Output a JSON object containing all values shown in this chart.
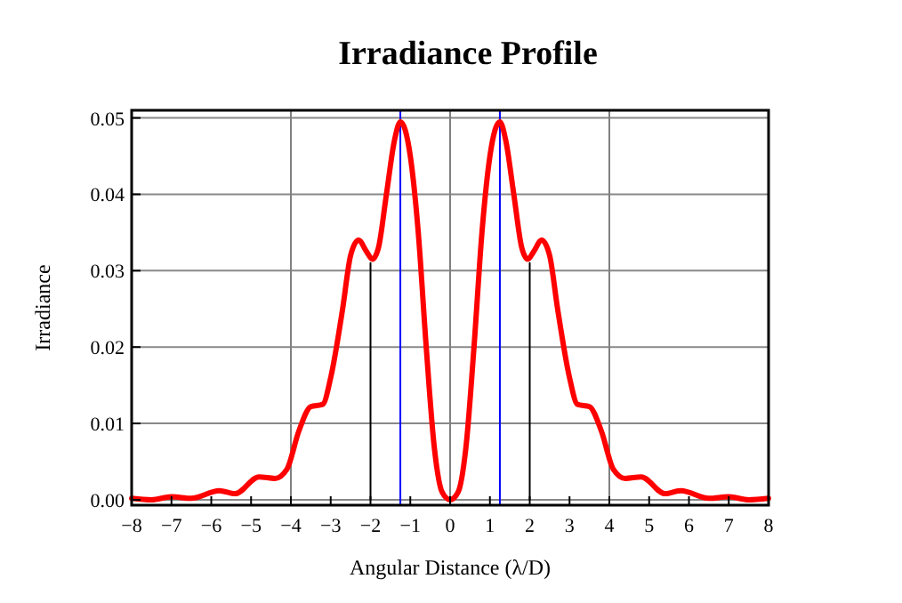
{
  "chart_data": {
    "type": "line",
    "title": "Irradiance Profile",
    "xlabel": "Angular Distance (λ/D)",
    "ylabel": "Irradiance",
    "xlim": [
      -8,
      8
    ],
    "xticks": [
      -8,
      -7,
      -6,
      -5,
      -4,
      -3,
      -2,
      -1,
      0,
      1,
      2,
      3,
      4,
      5,
      6,
      7,
      8
    ],
    "ylim": [
      -0.0007,
      0.051
    ],
    "yticks": [
      {
        "value": 0,
        "label": "0.00"
      },
      {
        "value": 0.01,
        "label": "0.01"
      },
      {
        "value": 0.02,
        "label": "0.02"
      },
      {
        "value": 0.03,
        "label": "0.03"
      },
      {
        "value": 0.04,
        "label": "0.04"
      },
      {
        "value": 0.05,
        "label": "0.05"
      }
    ],
    "grid": "y",
    "line_style": "solid",
    "ref_lines": [
      {
        "axis": "x",
        "value": -4,
        "color": "#808080"
      },
      {
        "axis": "x",
        "value": 0,
        "color": "#808080"
      },
      {
        "axis": "x",
        "value": 4,
        "color": "#808080"
      },
      {
        "axis": "x",
        "value": -1.25,
        "color": "#0000ff"
      },
      {
        "axis": "x",
        "value": 1.25,
        "color": "#0000ff"
      }
    ],
    "series": [
      {
        "color": "#ff0000",
        "x": [
          -8,
          -7.5,
          -7,
          -6.5,
          -5.8,
          -5.4,
          -4.8,
          -4.4,
          -4.1,
          -3.8,
          -3.5,
          -3.2,
          -3,
          -2.7,
          -2.5,
          -2.3,
          -2.1,
          -1.95,
          -1.8,
          -1.6,
          -1.4,
          -1.25,
          -1,
          -0.8,
          -0.6,
          -0.4,
          -0.2,
          0,
          0.2,
          0.4,
          0.6,
          0.8,
          1,
          1.25,
          1.4,
          1.6,
          1.8,
          1.95,
          2.1,
          2.3,
          2.5,
          2.7,
          3,
          3.2,
          3.5,
          3.8,
          4.1,
          4.4,
          4.8,
          5.4,
          5.8,
          6.5,
          7,
          7.5,
          8
        ],
        "values": [
          0.0002,
          0,
          0.0004,
          0.0002,
          0.0012,
          0.0008,
          0.003,
          0.0028,
          0.004,
          0.009,
          0.0122,
          0.0125,
          0.016,
          0.025,
          0.032,
          0.034,
          0.0325,
          0.0315,
          0.033,
          0.04,
          0.047,
          0.0495,
          0.045,
          0.035,
          0.02,
          0.007,
          0.001,
          0,
          0.001,
          0.007,
          0.02,
          0.035,
          0.045,
          0.0495,
          0.047,
          0.04,
          0.033,
          0.0315,
          0.0325,
          0.034,
          0.032,
          0.025,
          0.016,
          0.0125,
          0.0122,
          0.009,
          0.004,
          0.0028,
          0.003,
          0.0008,
          0.0012,
          0.0002,
          0.0004,
          0,
          0.0002
        ]
      },
      {
        "color": "#000000",
        "x": [
          -2,
          -2
        ],
        "values": [
          0,
          0.031
        ]
      },
      {
        "color": "#000000",
        "x": [
          2,
          2
        ],
        "values": [
          0,
          0.031
        ]
      }
    ]
  }
}
